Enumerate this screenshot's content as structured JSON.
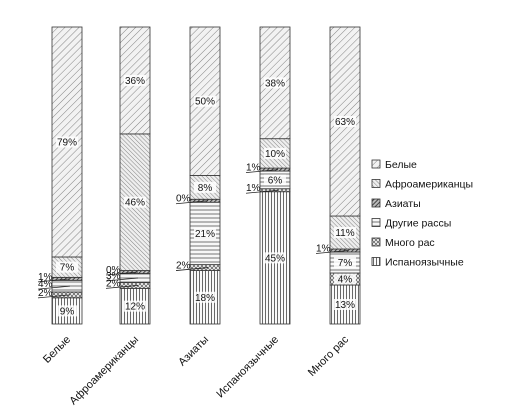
{
  "chart_data": {
    "type": "bar",
    "stacked": true,
    "percent": true,
    "categories": [
      "Белые",
      "Афроамериканцы",
      "Азиаты",
      "Испаноязычные",
      "Много рас"
    ],
    "series": [
      {
        "name": "Испаноязычные",
        "values": [
          9,
          12,
          18,
          45,
          13
        ],
        "pattern": "vertical"
      },
      {
        "name": "Много рас",
        "values": [
          2,
          2,
          2,
          1,
          4
        ],
        "pattern": "crosshatch"
      },
      {
        "name": "Другие рассы",
        "values": [
          4,
          3,
          21,
          6,
          7
        ],
        "pattern": "horizontal"
      },
      {
        "name": "Азиаты",
        "values": [
          1,
          0,
          0,
          1,
          1
        ],
        "pattern": "solid-diagonal"
      },
      {
        "name": "Афроамериканцы",
        "values": [
          7,
          46,
          8,
          10,
          11
        ],
        "pattern": "diagonal-dense"
      },
      {
        "name": "Белые",
        "values": [
          79,
          36,
          50,
          38,
          63
        ],
        "pattern": "diagonal"
      }
    ],
    "legend": {
      "position": "right",
      "items": [
        "Белые",
        "Афроамериканцы",
        "Азиаты",
        "Другие рассы",
        "Много рас",
        "Испаноязычные"
      ],
      "patterns": [
        "diagonal",
        "diagonal-dense",
        "solid-diagonal",
        "horizontal",
        "crosshatch",
        "vertical"
      ]
    },
    "grid": false,
    "title": "",
    "xlabel": "",
    "ylabel": ""
  }
}
